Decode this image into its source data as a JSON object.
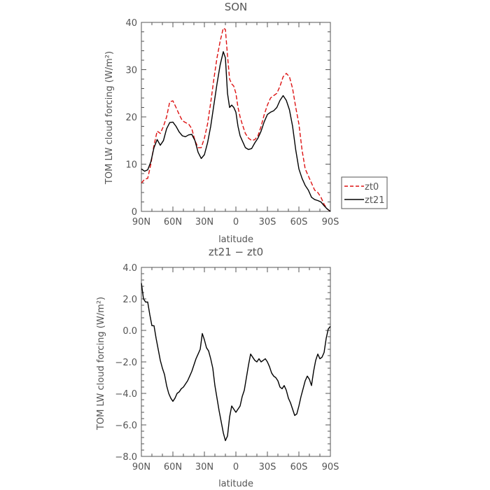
{
  "chart_data": [
    {
      "type": "line",
      "title": "SON",
      "xlabel": "latitude",
      "ylabel": "TOM LW cloud forcing (W/m²)",
      "xlim": [
        90,
        -90
      ],
      "ylim": [
        0,
        40
      ],
      "xticks": [
        {
          "value": 90,
          "label": "90N"
        },
        {
          "value": 60,
          "label": "60N"
        },
        {
          "value": 30,
          "label": "30N"
        },
        {
          "value": 0,
          "label": "0"
        },
        {
          "value": -30,
          "label": "30S"
        },
        {
          "value": -60,
          "label": "60S"
        },
        {
          "value": -90,
          "label": "90S"
        }
      ],
      "yticks": [
        {
          "value": 0,
          "label": "0"
        },
        {
          "value": 10,
          "label": "10"
        },
        {
          "value": 20,
          "label": "20"
        },
        {
          "value": 30,
          "label": "30"
        },
        {
          "value": 40,
          "label": "40"
        }
      ],
      "legend": "outside-right",
      "series": [
        {
          "name": "zt0",
          "color": "#dd1111",
          "dash": "dashed",
          "x": [
            90,
            87,
            84,
            81,
            78,
            75,
            72,
            69,
            66,
            63,
            60,
            57,
            54,
            51,
            48,
            45,
            42,
            39,
            36,
            33,
            30,
            27,
            24,
            21,
            18,
            15,
            12,
            10,
            8,
            6,
            4,
            2,
            0,
            -2,
            -4,
            -6,
            -9,
            -12,
            -15,
            -18,
            -21,
            -24,
            -27,
            -30,
            -33,
            -36,
            -39,
            -42,
            -45,
            -48,
            -51,
            -54,
            -57,
            -60,
            -63,
            -66,
            -69,
            -72,
            -75,
            -78,
            -81,
            -84,
            -87,
            -90
          ],
          "y": [
            6,
            6.8,
            7,
            10,
            14,
            17,
            16.5,
            18,
            20,
            23.2,
            23.4,
            22,
            20.5,
            19.2,
            18.8,
            18.5,
            17.5,
            15,
            13.5,
            13.5,
            15.5,
            18.5,
            23,
            28,
            32.5,
            36,
            38.8,
            38.5,
            33,
            28,
            27,
            26.5,
            25,
            22,
            20,
            18.5,
            16.5,
            15.5,
            15,
            15.2,
            16,
            18,
            20.5,
            22.5,
            24,
            24.5,
            25,
            26.5,
            28.5,
            29.2,
            28.5,
            26,
            22,
            18.5,
            13,
            9,
            7.5,
            6,
            4.5,
            4,
            3,
            1.5,
            0.5,
            0
          ]
        },
        {
          "name": "zt21",
          "color": "#000000",
          "dash": "solid",
          "x": [
            90,
            87,
            84,
            81,
            78,
            75,
            72,
            69,
            66,
            63,
            60,
            57,
            54,
            51,
            48,
            45,
            42,
            39,
            36,
            33,
            30,
            27,
            24,
            21,
            18,
            15,
            12,
            10,
            8,
            6,
            4,
            2,
            0,
            -2,
            -4,
            -6,
            -9,
            -12,
            -15,
            -18,
            -21,
            -24,
            -27,
            -30,
            -33,
            -36,
            -39,
            -42,
            -45,
            -48,
            -51,
            -54,
            -57,
            -60,
            -63,
            -66,
            -69,
            -72,
            -75,
            -78,
            -81,
            -84,
            -87,
            -90
          ],
          "y": [
            9,
            8.5,
            8.8,
            10.5,
            13.5,
            15.2,
            14,
            15,
            17.5,
            18.8,
            18.9,
            18,
            16.8,
            16,
            15.8,
            16.2,
            16.3,
            15,
            12.5,
            11.2,
            12,
            14.5,
            18,
            22.5,
            27,
            31,
            33.8,
            32.5,
            25,
            22,
            22.5,
            22,
            21,
            18,
            16,
            15,
            13.5,
            13.1,
            13.3,
            14.5,
            15.5,
            17,
            19,
            20.5,
            21,
            21.3,
            22,
            23.5,
            24.5,
            23.5,
            21.5,
            18,
            13,
            9,
            7,
            5.5,
            4.5,
            3,
            2.5,
            2.3,
            2,
            1.2,
            0.5,
            0
          ]
        }
      ]
    },
    {
      "type": "line",
      "title": "zt21 − zt0",
      "xlabel": "latitude",
      "ylabel": "TOM LW cloud forcing (W/m²)",
      "xlim": [
        90,
        -90
      ],
      "ylim": [
        -8,
        4
      ],
      "xticks": [
        {
          "value": 90,
          "label": "90N"
        },
        {
          "value": 60,
          "label": "60N"
        },
        {
          "value": 30,
          "label": "30N"
        },
        {
          "value": 0,
          "label": "0"
        },
        {
          "value": -30,
          "label": "30S"
        },
        {
          "value": -60,
          "label": "60S"
        },
        {
          "value": -90,
          "label": "90S"
        }
      ],
      "yticks": [
        {
          "value": -8,
          "label": "−8.0"
        },
        {
          "value": -6,
          "label": "−6.0"
        },
        {
          "value": -4,
          "label": "−4.0"
        },
        {
          "value": -2,
          "label": "−2.0"
        },
        {
          "value": 0,
          "label": "0.0"
        },
        {
          "value": 2,
          "label": "2.0"
        },
        {
          "value": 4,
          "label": "4.0"
        }
      ],
      "series": [
        {
          "name": "",
          "color": "#000000",
          "dash": "solid",
          "x": [
            90,
            88,
            86,
            84,
            82,
            80,
            78,
            76,
            74,
            72,
            70,
            68,
            66,
            64,
            62,
            60,
            58,
            56,
            54,
            52,
            50,
            48,
            46,
            44,
            42,
            40,
            38,
            36,
            34,
            32,
            30,
            28,
            26,
            24,
            22,
            20,
            18,
            16,
            14,
            12,
            10,
            8,
            6,
            4,
            2,
            0,
            -2,
            -4,
            -6,
            -8,
            -10,
            -12,
            -14,
            -16,
            -18,
            -20,
            -22,
            -24,
            -26,
            -28,
            -30,
            -32,
            -34,
            -36,
            -38,
            -40,
            -42,
            -44,
            -46,
            -48,
            -50,
            -52,
            -54,
            -56,
            -58,
            -60,
            -62,
            -64,
            -66,
            -68,
            -70,
            -72,
            -74,
            -76,
            -78,
            -80,
            -82,
            -84,
            -86,
            -88,
            -90
          ],
          "y": [
            3.0,
            2.0,
            1.8,
            1.8,
            1.0,
            0.3,
            0.3,
            -0.5,
            -1.2,
            -1.9,
            -2.4,
            -2.8,
            -3.5,
            -4.0,
            -4.3,
            -4.5,
            -4.3,
            -4.0,
            -3.9,
            -3.7,
            -3.6,
            -3.4,
            -3.2,
            -2.9,
            -2.6,
            -2.2,
            -1.8,
            -1.5,
            -1.2,
            -0.2,
            -0.6,
            -1.1,
            -1.3,
            -1.8,
            -2.4,
            -3.5,
            -4.3,
            -5.1,
            -5.8,
            -6.5,
            -7.0,
            -6.7,
            -5.5,
            -4.8,
            -5.0,
            -5.2,
            -5.0,
            -4.8,
            -4.2,
            -3.8,
            -3.0,
            -2.2,
            -1.5,
            -1.7,
            -1.9,
            -2.0,
            -1.8,
            -2.0,
            -1.9,
            -1.8,
            -2.0,
            -2.3,
            -2.7,
            -2.9,
            -3.0,
            -3.2,
            -3.6,
            -3.7,
            -3.5,
            -3.8,
            -4.3,
            -4.6,
            -5.0,
            -5.4,
            -5.3,
            -4.8,
            -4.2,
            -3.7,
            -3.2,
            -2.9,
            -3.1,
            -3.5,
            -2.6,
            -1.9,
            -1.5,
            -1.8,
            -1.7,
            -1.4,
            -0.5,
            0.1,
            0.25
          ]
        }
      ]
    }
  ]
}
